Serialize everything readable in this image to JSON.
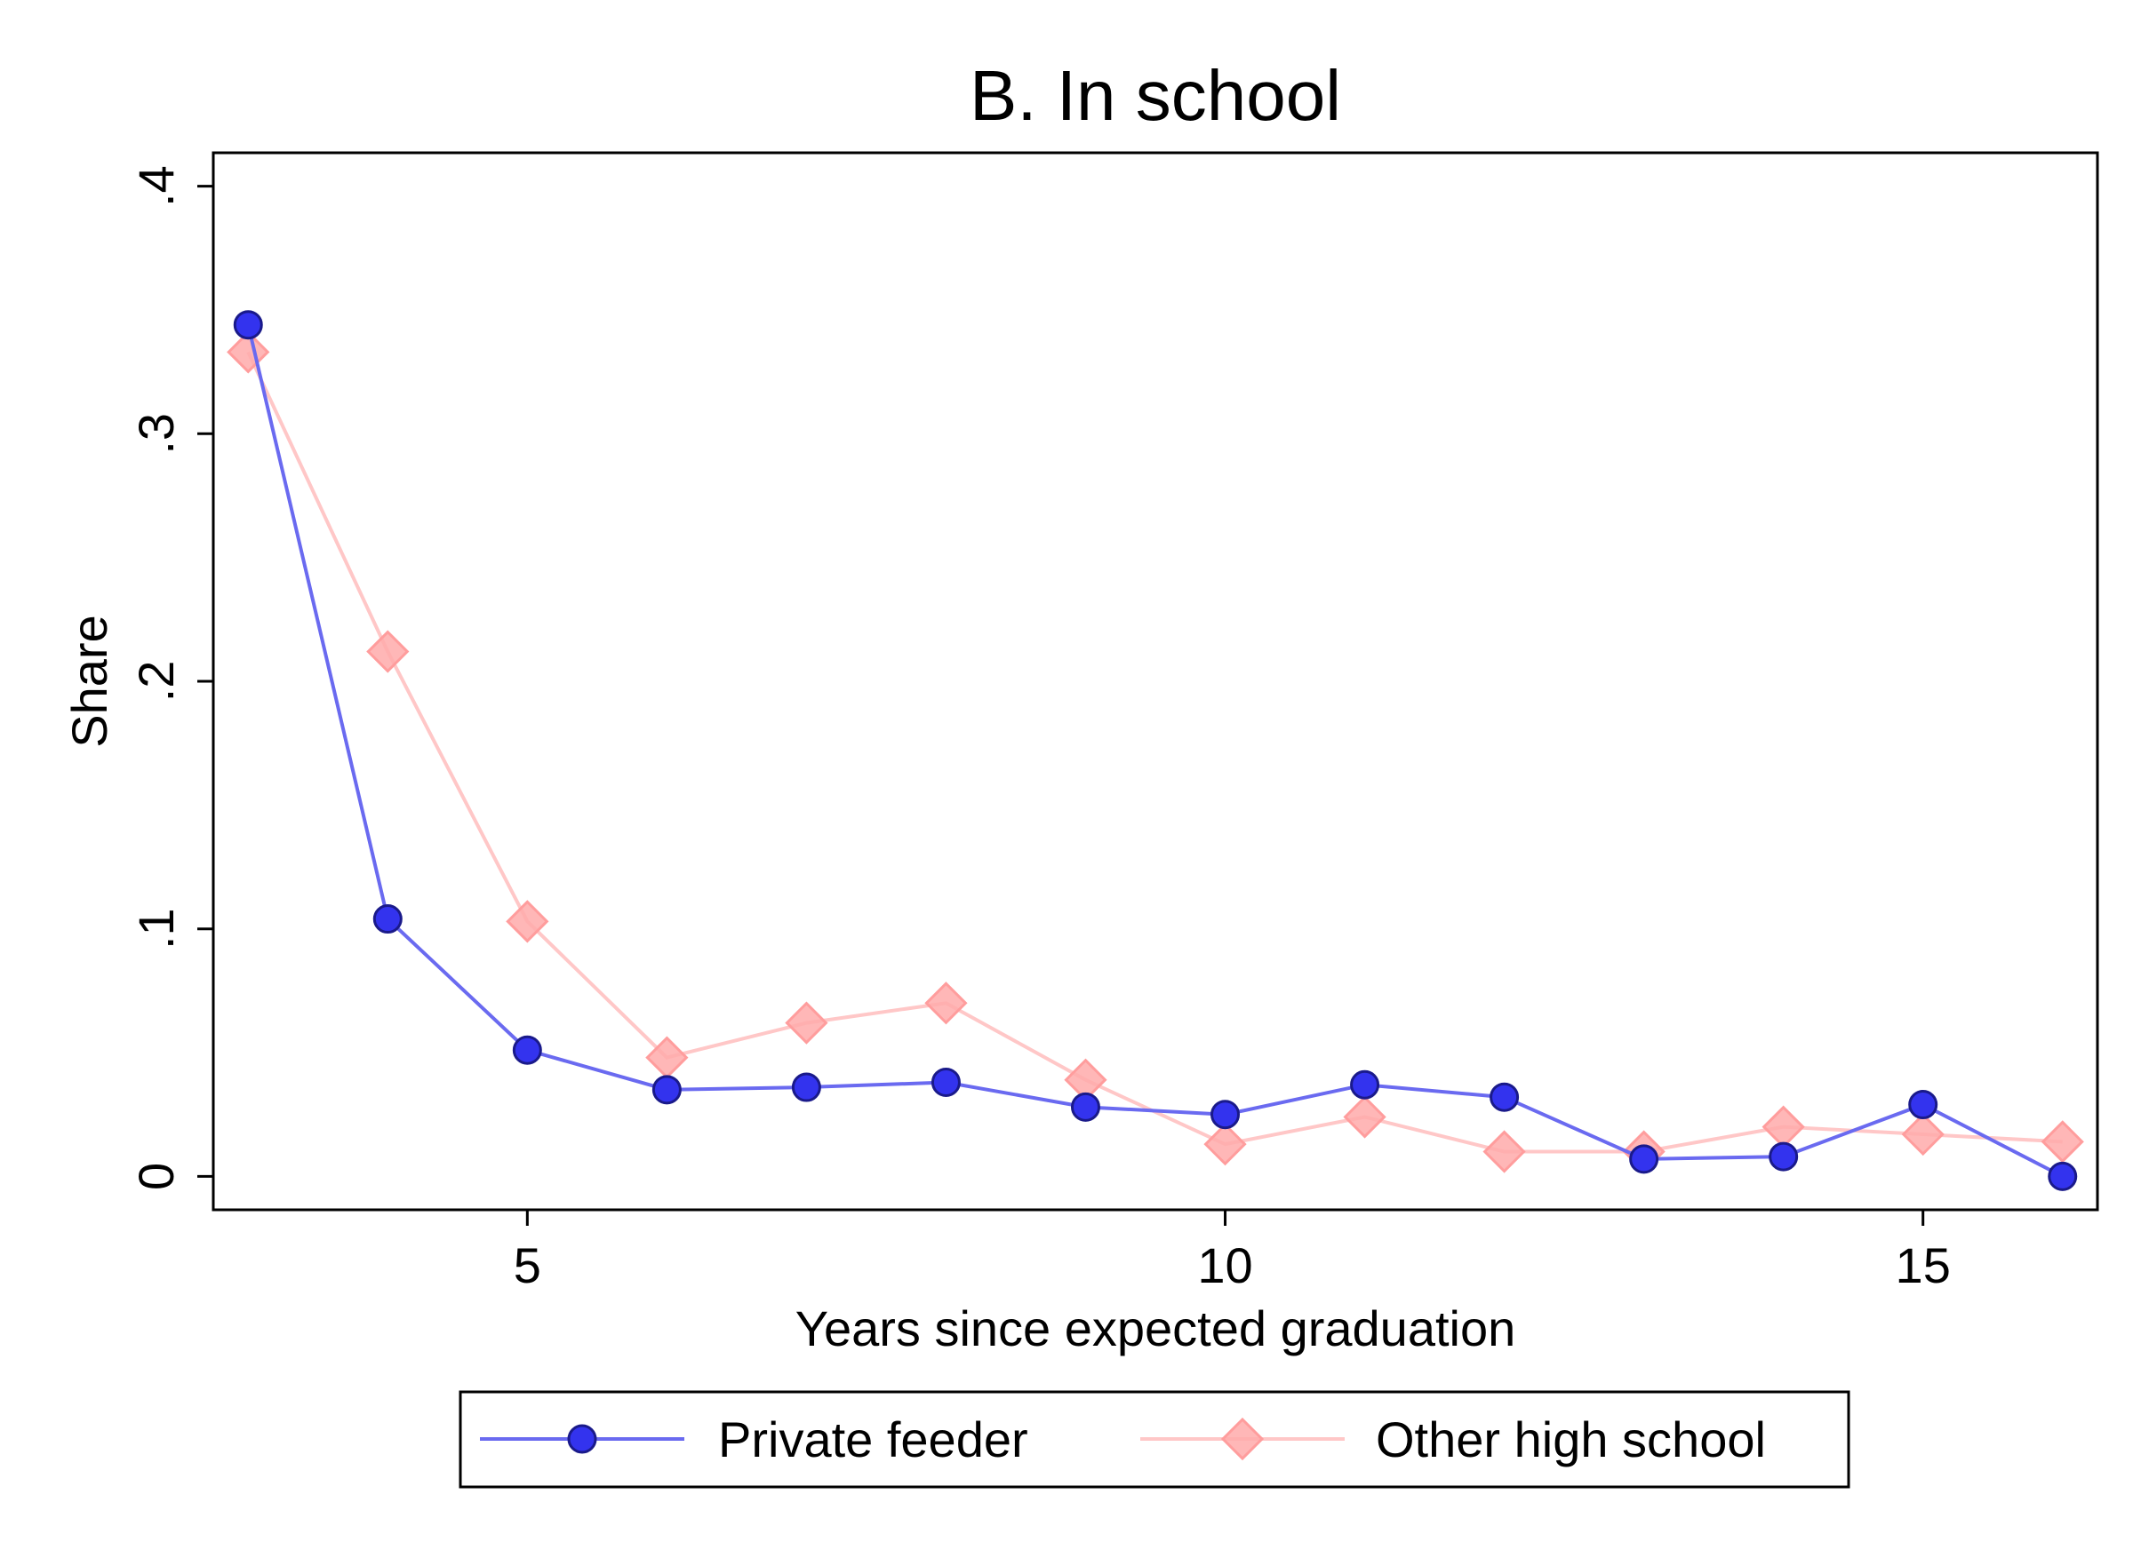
{
  "chart_data": {
    "type": "line",
    "title": "B. In school",
    "xlabel": "Years since expected graduation",
    "ylabel": "Share",
    "xlim": [
      2.75,
      16.25
    ],
    "ylim": [
      -0.0135,
      0.4135
    ],
    "xticks": [
      5,
      10,
      15
    ],
    "xtick_labels": [
      "5",
      "10",
      "15"
    ],
    "yticks": [
      0,
      0.1,
      0.2,
      0.3,
      0.4
    ],
    "ytick_labels": [
      "0",
      ".1",
      ".2",
      ".3",
      ".4"
    ],
    "grid": false,
    "legend_position": "bottom",
    "x": [
      3,
      4,
      5,
      6,
      7,
      8,
      9,
      10,
      11,
      12,
      13,
      14,
      15,
      16
    ],
    "series": [
      {
        "name": "Private feeder",
        "marker": "circle",
        "color": "#3333ee",
        "line_color": "#6a6af0",
        "values": [
          0.344,
          0.104,
          0.051,
          0.035,
          0.036,
          0.038,
          0.028,
          0.025,
          0.037,
          0.032,
          0.007,
          0.008,
          0.029,
          0.0
        ]
      },
      {
        "name": "Other high school",
        "marker": "diamond",
        "color": "#ffaaaa",
        "line_color": "#ffc7c7",
        "values": [
          0.333,
          0.212,
          0.103,
          0.048,
          0.062,
          0.07,
          0.039,
          0.013,
          0.024,
          0.01,
          0.01,
          0.02,
          0.017,
          0.014
        ]
      }
    ]
  }
}
